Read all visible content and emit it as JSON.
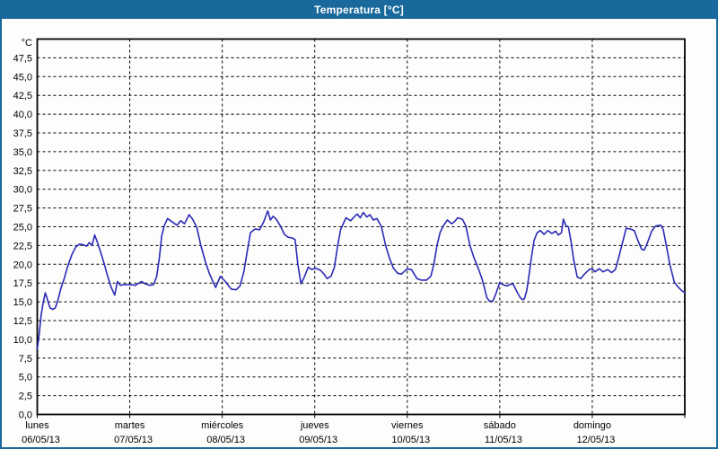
{
  "window": {
    "title": "Temperatura [°C]"
  },
  "theme": {
    "titlebar_bg": "#1a699c",
    "panel_border": "#1a699c",
    "title_text_color": "#ffffff",
    "plot_bg": "#fdfdfb",
    "axis_color": "#000000",
    "line_color": "#2a2ab8"
  },
  "chart_data": {
    "type": "line",
    "title": "Temperatura [°C]",
    "legend": "none",
    "grid": "dashed",
    "y_axis": {
      "unit_label": "°C",
      "min": 0,
      "max": 50,
      "tick_step": 2.5,
      "tick_values": [
        0,
        2.5,
        5,
        7.5,
        10,
        12.5,
        15,
        17.5,
        20,
        22.5,
        25,
        27.5,
        30,
        32.5,
        35,
        37.5,
        40,
        42.5,
        45,
        47.5
      ],
      "tick_labels": [
        "0,0",
        "2,5",
        "5,0",
        "7,5",
        "10,0",
        "12,5",
        "15,0",
        "17,5",
        "20,0",
        "22,5",
        "25,0",
        "27,5",
        "30,0",
        "32,5",
        "35,0",
        "37,5",
        "40,0",
        "42,5",
        "45,0",
        "47,5"
      ]
    },
    "x_axis": {
      "span_hours": 168,
      "day_width_hours": 24,
      "day_ticks": [
        {
          "weekday": "lunes",
          "date": "06/05/13"
        },
        {
          "weekday": "martes",
          "date": "07/05/13"
        },
        {
          "weekday": "miércoles",
          "date": "08/05/13"
        },
        {
          "weekday": "jueves",
          "date": "09/05/13"
        },
        {
          "weekday": "viernes",
          "date": "10/05/13"
        },
        {
          "weekday": "sábado",
          "date": "11/05/13"
        },
        {
          "weekday": "domingo",
          "date": "12/05/13"
        }
      ]
    },
    "series": [
      {
        "name": "Temperatura",
        "unit": "°C",
        "points_hours_temp": [
          [
            0,
            8.7
          ],
          [
            0.5,
            10.6
          ],
          [
            1,
            13.2
          ],
          [
            1.6,
            15.1
          ],
          [
            2.1,
            16.2
          ],
          [
            2.7,
            15.2
          ],
          [
            3.3,
            14.2
          ],
          [
            4,
            14
          ],
          [
            4.7,
            14.2
          ],
          [
            5.4,
            15.3
          ],
          [
            6.2,
            16.9
          ],
          [
            7,
            18.1
          ],
          [
            7.7,
            19.4
          ],
          [
            8.3,
            20.3
          ],
          [
            9,
            21.3
          ],
          [
            10,
            22.3
          ],
          [
            11,
            22.7
          ],
          [
            12,
            22.6
          ],
          [
            12.8,
            22.4
          ],
          [
            13.5,
            22.9
          ],
          [
            14.2,
            22.5
          ],
          [
            14.9,
            23.9
          ],
          [
            15.7,
            22.8
          ],
          [
            16.4,
            21.7
          ],
          [
            17.3,
            20.2
          ],
          [
            18.2,
            18.5
          ],
          [
            19.2,
            16.9
          ],
          [
            20.1,
            15.9
          ],
          [
            20.8,
            17.7
          ],
          [
            21.6,
            17.2
          ],
          [
            22.6,
            17.3
          ],
          [
            24,
            17.3
          ],
          [
            25.5,
            17.2
          ],
          [
            27,
            17.7
          ],
          [
            28,
            17.4
          ],
          [
            29.2,
            17.2
          ],
          [
            30.2,
            17.3
          ],
          [
            31,
            18.4
          ],
          [
            31.7,
            20.9
          ],
          [
            32.3,
            23.8
          ],
          [
            33,
            25.2
          ],
          [
            33.8,
            26.1
          ],
          [
            34.6,
            25.8
          ],
          [
            35.4,
            25.5
          ],
          [
            36.3,
            25.2
          ],
          [
            37.2,
            25.8
          ],
          [
            38.2,
            25.4
          ],
          [
            39.4,
            26.6
          ],
          [
            40.3,
            26
          ],
          [
            41.4,
            24.9
          ],
          [
            42.4,
            22.6
          ],
          [
            43.6,
            20.4
          ],
          [
            44.7,
            18.7
          ],
          [
            45.6,
            17.7
          ],
          [
            46.3,
            16.9
          ],
          [
            47.5,
            18.4
          ],
          [
            48.8,
            17.7
          ],
          [
            50.3,
            16.7
          ],
          [
            51.6,
            16.6
          ],
          [
            52.6,
            17.1
          ],
          [
            53.6,
            19
          ],
          [
            54.5,
            21.8
          ],
          [
            55.3,
            24.2
          ],
          [
            56.5,
            24.7
          ],
          [
            57.7,
            24.6
          ],
          [
            58.8,
            25.7
          ],
          [
            59.8,
            27.1
          ],
          [
            60.5,
            25.9
          ],
          [
            61.2,
            26.4
          ],
          [
            62,
            26
          ],
          [
            63.1,
            25.1
          ],
          [
            64.1,
            24
          ],
          [
            65.1,
            23.6
          ],
          [
            66.1,
            23.5
          ],
          [
            66.9,
            23.3
          ],
          [
            67.6,
            20.1
          ],
          [
            68.4,
            17.4
          ],
          [
            69.3,
            18.3
          ],
          [
            70.3,
            19.6
          ],
          [
            71.3,
            19.3
          ],
          [
            72.1,
            19.5
          ],
          [
            73.5,
            19.2
          ],
          [
            74.4,
            18.7
          ],
          [
            75.2,
            18.1
          ],
          [
            76.2,
            18.4
          ],
          [
            77.1,
            19.6
          ],
          [
            77.9,
            22.4
          ],
          [
            78.7,
            24.6
          ],
          [
            80.1,
            26.2
          ],
          [
            81.3,
            25.8
          ],
          [
            82.2,
            26.3
          ],
          [
            83,
            26.7
          ],
          [
            83.8,
            26.2
          ],
          [
            84.6,
            26.9
          ],
          [
            85.5,
            26.3
          ],
          [
            86.3,
            26.6
          ],
          [
            87.2,
            25.9
          ],
          [
            88.1,
            26.1
          ],
          [
            89.3,
            25
          ],
          [
            90.4,
            22.5
          ],
          [
            91.4,
            20.8
          ],
          [
            92.4,
            19.5
          ],
          [
            93.5,
            18.8
          ],
          [
            94.5,
            18.7
          ],
          [
            96,
            19.4
          ],
          [
            97.1,
            19.3
          ],
          [
            98.5,
            18.1
          ],
          [
            99.6,
            17.9
          ],
          [
            101,
            17.9
          ],
          [
            102.1,
            18.4
          ],
          [
            102.9,
            20
          ],
          [
            103.7,
            22.5
          ],
          [
            104.5,
            24.2
          ],
          [
            105.3,
            25.1
          ],
          [
            106.4,
            25.9
          ],
          [
            107.5,
            25.4
          ],
          [
            108.3,
            25.7
          ],
          [
            109.1,
            26.2
          ],
          [
            110.3,
            26
          ],
          [
            111.2,
            25.1
          ],
          [
            112.2,
            22.6
          ],
          [
            113.2,
            21
          ],
          [
            114.3,
            19.6
          ],
          [
            115.3,
            18.2
          ],
          [
            116,
            16.9
          ],
          [
            116.6,
            15.6
          ],
          [
            117.3,
            15.1
          ],
          [
            118.2,
            15.1
          ],
          [
            119,
            16.1
          ],
          [
            120,
            17.6
          ],
          [
            120.7,
            17.3
          ],
          [
            121.9,
            17.1
          ],
          [
            122.6,
            17.3
          ],
          [
            123.4,
            17.4
          ],
          [
            124.7,
            16.1
          ],
          [
            125.4,
            15.5
          ],
          [
            125.9,
            15.3
          ],
          [
            126.4,
            15.4
          ],
          [
            127,
            16.5
          ],
          [
            127.6,
            18.6
          ],
          [
            128.2,
            20.9
          ],
          [
            128.9,
            23.2
          ],
          [
            129.7,
            24.2
          ],
          [
            130.5,
            24.5
          ],
          [
            131.5,
            24
          ],
          [
            132.5,
            24.5
          ],
          [
            133.5,
            24.1
          ],
          [
            134.5,
            24.4
          ],
          [
            135.2,
            23.9
          ],
          [
            136,
            24.2
          ],
          [
            136.5,
            26
          ],
          [
            137.2,
            25.1
          ],
          [
            137.8,
            25
          ],
          [
            138.5,
            23
          ],
          [
            139.2,
            20.5
          ],
          [
            140.1,
            18.3
          ],
          [
            141,
            18.1
          ],
          [
            142,
            18.7
          ],
          [
            143.2,
            19.3
          ],
          [
            144,
            19.4
          ],
          [
            144.7,
            19
          ],
          [
            145.8,
            19.4
          ],
          [
            146.8,
            19
          ],
          [
            148,
            19.3
          ],
          [
            149,
            18.9
          ],
          [
            150,
            19.3
          ],
          [
            150.9,
            21
          ],
          [
            151.7,
            22.6
          ],
          [
            152.8,
            24.8
          ],
          [
            153.9,
            24.7
          ],
          [
            154.9,
            24.5
          ],
          [
            155.8,
            23.2
          ],
          [
            156.8,
            22
          ],
          [
            157.5,
            21.9
          ],
          [
            158.4,
            23
          ],
          [
            159.4,
            24.4
          ],
          [
            160.4,
            25.1
          ],
          [
            161.8,
            25.2
          ],
          [
            162.4,
            24.6
          ],
          [
            163.2,
            22.5
          ],
          [
            164.1,
            20
          ],
          [
            165.3,
            17.6
          ],
          [
            166.4,
            16.9
          ],
          [
            167.2,
            16.5
          ],
          [
            168,
            16.2
          ]
        ]
      }
    ]
  }
}
